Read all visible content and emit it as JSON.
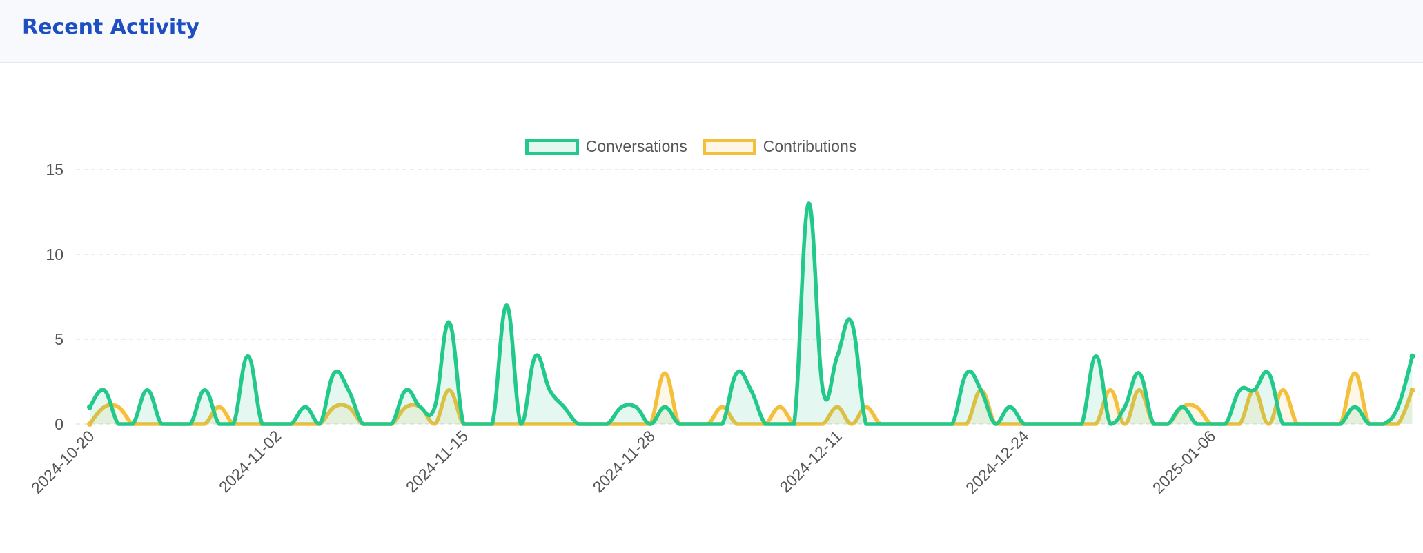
{
  "header": {
    "title": "Recent Activity"
  },
  "colors": {
    "conversations": "#22c98a",
    "contributions": "#f4c03c",
    "grid": "#e6e6e6",
    "tick_text": "#555555"
  },
  "chart_data": {
    "type": "line",
    "title": "",
    "xlabel": "",
    "ylabel": "",
    "ylim": [
      0,
      15
    ],
    "yticks": [
      0,
      5,
      10,
      15
    ],
    "x_start": "2024-10-20",
    "x_end": "2025-01-17",
    "xtick_labels": [
      "2024-10-20",
      "2024-11-02",
      "2024-11-15",
      "2024-11-28",
      "2024-12-11",
      "2024-12-24",
      "2025-01-06"
    ],
    "grid": true,
    "legend_position": "top-center",
    "series": [
      {
        "name": "Conversations",
        "color": "#22c98a",
        "values": [
          1,
          2,
          0,
          0,
          2,
          0,
          0,
          0,
          2,
          0,
          0,
          4,
          0,
          0,
          0,
          1,
          0,
          3,
          2,
          0,
          0,
          0,
          2,
          1,
          1,
          6,
          0,
          0,
          0,
          7,
          0,
          4,
          2,
          1,
          0,
          0,
          0,
          1,
          1,
          0,
          1,
          0,
          0,
          0,
          0,
          3,
          2,
          0,
          0,
          0,
          13,
          2,
          4,
          6,
          0,
          0,
          0,
          0,
          0,
          0,
          0,
          3,
          2,
          0,
          1,
          0,
          0,
          0,
          0,
          0,
          4,
          0,
          1,
          3,
          0,
          0,
          1,
          0,
          0,
          0,
          2,
          2,
          3,
          0,
          0,
          0,
          0,
          0,
          1,
          0,
          0,
          1,
          4
        ]
      },
      {
        "name": "Contributions",
        "color": "#f4c03c",
        "values": [
          0,
          1,
          1,
          0,
          0,
          0,
          0,
          0,
          0,
          1,
          0,
          0,
          0,
          0,
          0,
          0,
          0,
          1,
          1,
          0,
          0,
          0,
          1,
          1,
          0,
          2,
          0,
          0,
          0,
          0,
          0,
          0,
          0,
          0,
          0,
          0,
          0,
          0,
          0,
          0,
          3,
          0,
          0,
          0,
          1,
          0,
          0,
          0,
          1,
          0,
          0,
          0,
          1,
          0,
          1,
          0,
          0,
          0,
          0,
          0,
          0,
          0,
          2,
          0,
          0,
          0,
          0,
          0,
          0,
          0,
          0,
          2,
          0,
          2,
          0,
          0,
          1,
          1,
          0,
          0,
          0,
          2,
          0,
          2,
          0,
          0,
          0,
          0,
          3,
          0,
          0,
          0,
          2
        ]
      }
    ]
  }
}
